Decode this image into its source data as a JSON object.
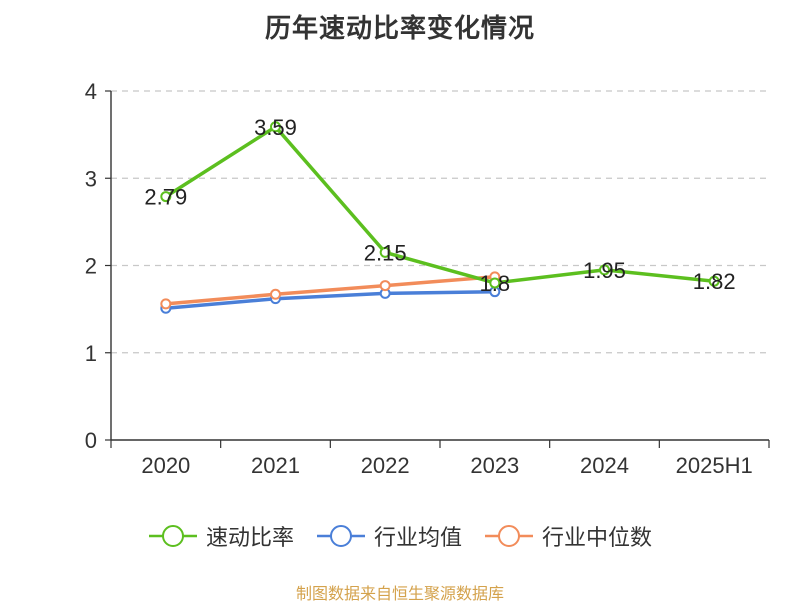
{
  "chart_data": {
    "type": "line",
    "title": "历年速动比率变化情况",
    "categories": [
      "2020",
      "2021",
      "2022",
      "2023",
      "2024",
      "2025H1"
    ],
    "ylim": [
      0,
      4
    ],
    "yticks": [
      "0",
      "1",
      "2",
      "3",
      "4"
    ],
    "grid": true,
    "legend_position": "bottom",
    "series": [
      {
        "name": "速动比率",
        "color": "#5cbf1f",
        "values": [
          2.79,
          3.59,
          2.15,
          1.8,
          1.95,
          1.82
        ],
        "labels": [
          "2.79",
          "3.59",
          "2.15",
          "1.8",
          "1.95",
          "1.82"
        ]
      },
      {
        "name": "行业均值",
        "color": "#4a7fd8",
        "values": [
          1.51,
          1.62,
          1.68,
          1.7,
          null,
          null
        ]
      },
      {
        "name": "行业中位数",
        "color": "#f28c5a",
        "values": [
          1.56,
          1.67,
          1.77,
          1.87,
          null,
          null
        ]
      }
    ]
  },
  "source_note": "制图数据来自恒生聚源数据库"
}
